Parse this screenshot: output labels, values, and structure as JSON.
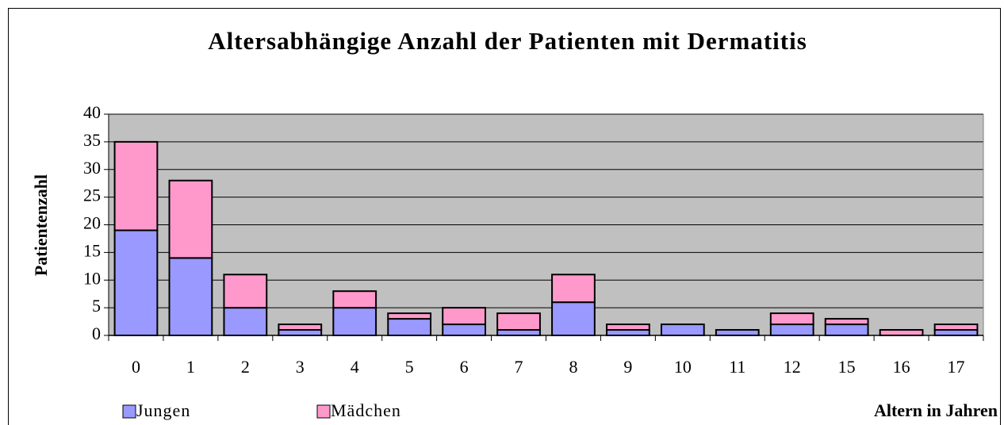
{
  "chart_data": {
    "type": "stacked_bar",
    "title": "Altersabhängige Anzahl der Patienten mit Dermatitis",
    "ylabel": "Patientenzahl",
    "xlabel": "Altern in Jahren",
    "categories": [
      "0",
      "1",
      "2",
      "3",
      "4",
      "5",
      "6",
      "7",
      "8",
      "9",
      "10",
      "11",
      "12",
      "15",
      "16",
      "17"
    ],
    "series": [
      {
        "name": "Jungen",
        "color": "#9999ff",
        "values": [
          19,
          14,
          5,
          1,
          5,
          3,
          2,
          1,
          6,
          1,
          2,
          1,
          2,
          2,
          0,
          1
        ]
      },
      {
        "name": "Mädchen",
        "color": "#ff99cc",
        "values": [
          16,
          14,
          6,
          1,
          3,
          1,
          3,
          3,
          5,
          1,
          0,
          0,
          2,
          1,
          1,
          1
        ]
      }
    ],
    "ylim": [
      0,
      40
    ],
    "yticks": [
      0,
      5,
      10,
      15,
      20,
      25,
      30,
      35,
      40
    ],
    "grid": true
  }
}
